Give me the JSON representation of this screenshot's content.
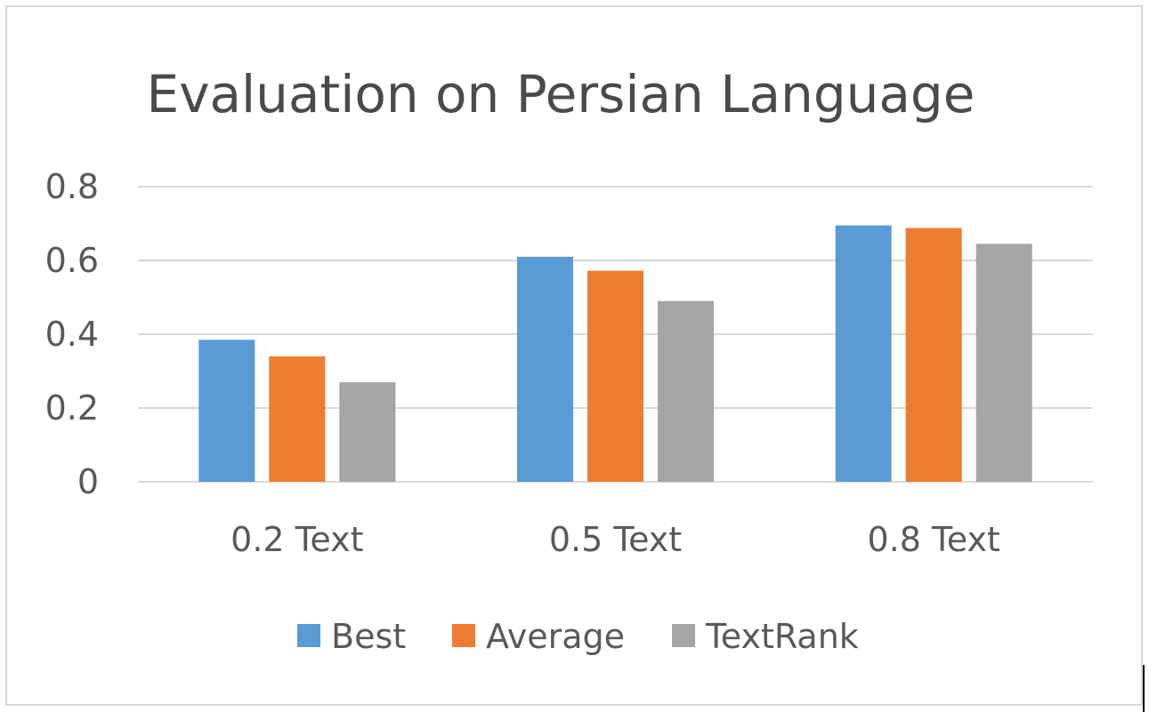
{
  "chart_data": {
    "type": "bar",
    "title": "Evaluation on Persian Language",
    "categories": [
      "0.2 Text",
      "0.5 Text",
      "0.8 Text"
    ],
    "series": [
      {
        "name": "Best",
        "color": "#5b9bd5",
        "values": [
          0.385,
          0.61,
          0.695
        ]
      },
      {
        "name": "Average",
        "color": "#ed7d31",
        "values": [
          0.34,
          0.572,
          0.688
        ]
      },
      {
        "name": "TextRank",
        "color": "#a5a5a5",
        "values": [
          0.27,
          0.49,
          0.645
        ]
      }
    ],
    "yticks": [
      "0",
      "0.2",
      "0.4",
      "0.6",
      "0.8"
    ],
    "ylim": [
      0,
      0.8
    ],
    "xlabel": "",
    "ylabel": "",
    "grid": true,
    "legend_position": "bottom"
  }
}
